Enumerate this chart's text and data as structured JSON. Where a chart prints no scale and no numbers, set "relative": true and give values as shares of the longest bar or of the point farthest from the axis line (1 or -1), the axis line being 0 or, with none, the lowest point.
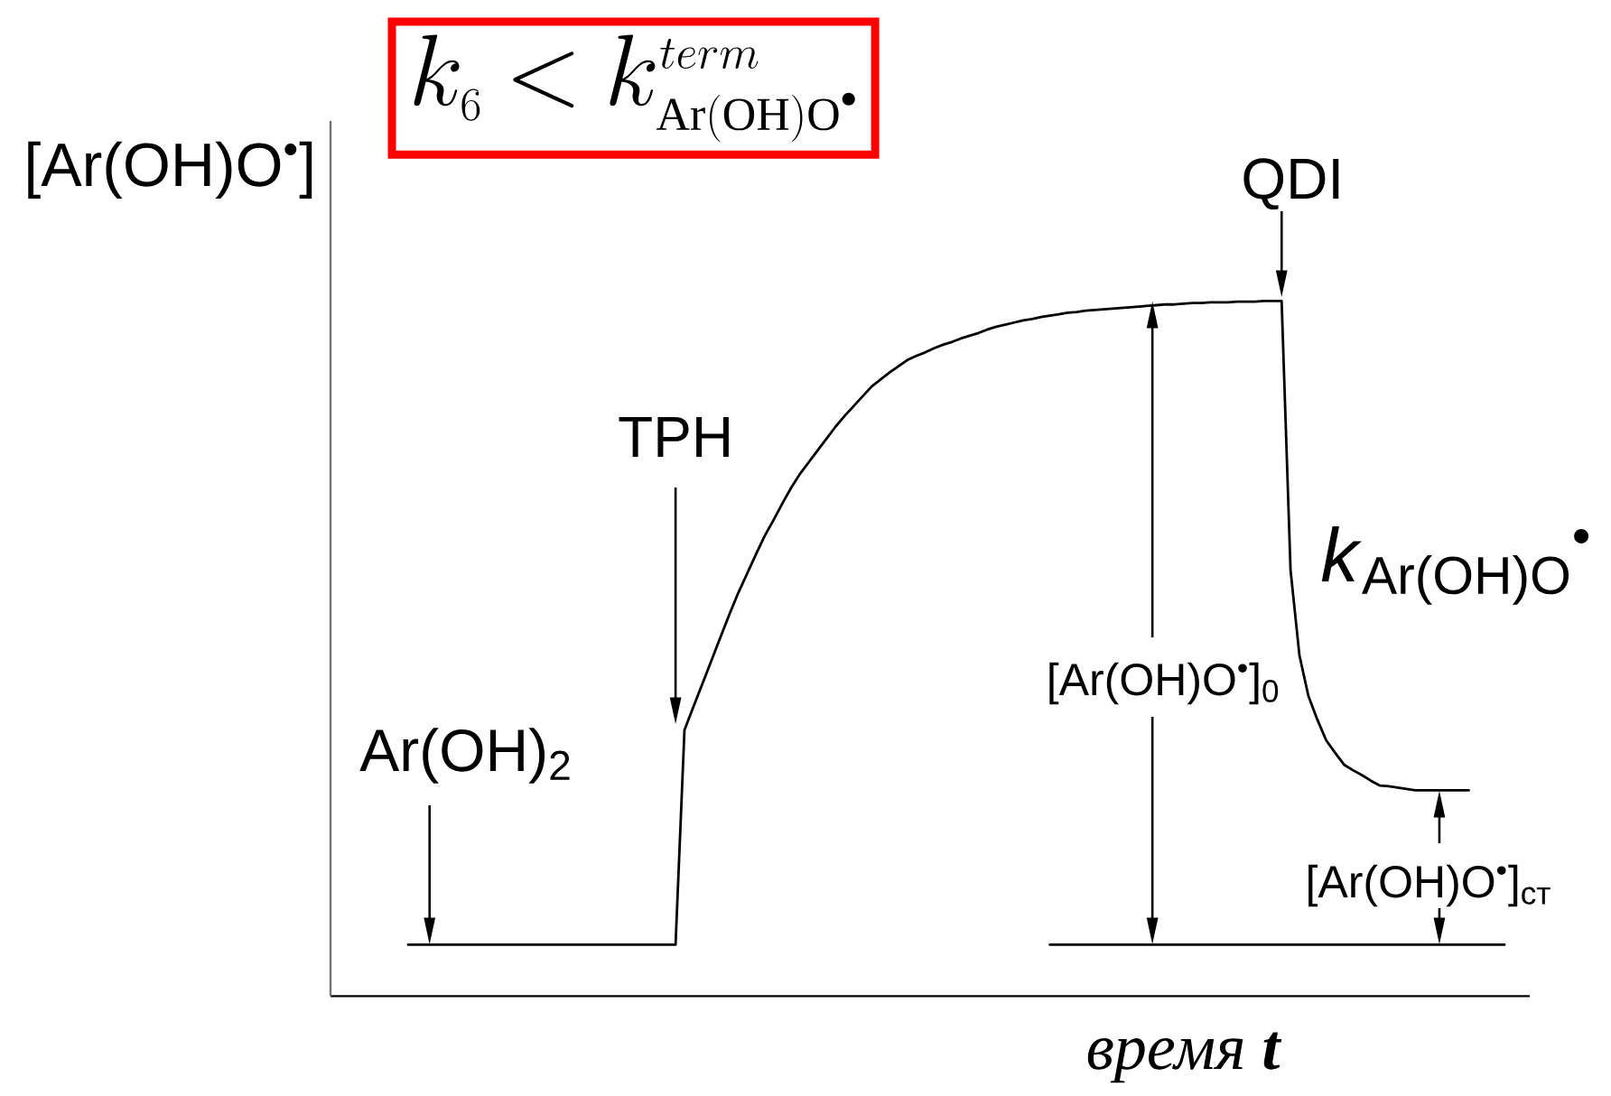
{
  "chart_data": {
    "type": "line",
    "relative": true,
    "title": "k_{6} < k^{term}_{\\mathrm{Ar(OH)O}^{\\bullet}}",
    "xlabel": "время **t**",
    "ylabel": "[Ar(OH)O$^{•}$]",
    "categories": [
      null,
      null,
      null,
      null,
      null,
      null,
      null,
      null,
      null,
      null,
      null,
      null,
      null,
      null,
      null,
      null,
      null,
      null,
      null,
      null,
      null,
      null,
      null,
      null,
      null,
      null,
      null,
      null,
      null,
      null,
      null,
      null,
      null,
      null,
      null,
      null,
      null,
      null,
      null,
      null,
      null,
      null,
      null,
      null,
      null,
      null,
      null,
      null,
      null,
      null,
      null,
      null,
      null,
      null,
      null,
      null,
      null,
      null,
      null,
      null,
      null,
      null,
      null,
      null,
      null,
      null,
      null,
      null,
      null,
      null,
      null,
      null,
      null,
      null,
      null,
      null,
      null,
      null,
      null,
      null,
      null,
      null,
      null,
      null,
      null,
      null,
      null,
      null,
      null,
      null,
      null,
      null,
      null,
      null,
      null,
      null,
      null,
      null,
      null,
      null,
      null,
      null,
      null,
      null,
      null,
      null,
      null,
      null,
      null,
      null,
      null,
      null,
      null,
      null,
      null,
      null,
      null,
      null,
      null,
      null,
      null,
      null,
      null,
      null
    ],
    "series": [
      {
        "color": "#000000",
        "values": [
          0.074,
          0.074,
          0.074,
          0.074,
          0.074,
          0.074,
          0.074,
          0.074,
          0.074,
          0.074,
          0.074,
          0.074,
          0.074,
          0.074,
          0.074,
          0.074,
          0.074,
          0.074,
          0.074,
          0.074,
          0.074,
          0.074,
          0.074,
          0.074,
          0.074,
          0.074,
          0.074,
          0.074,
          0.074,
          0.074,
          0.074,
          0.383,
          0.416,
          0.449,
          0.482,
          0.515,
          0.548,
          0.579,
          0.607,
          0.635,
          0.662,
          0.685,
          0.709,
          0.732,
          0.752,
          0.769,
          0.786,
          0.803,
          0.82,
          0.835,
          0.849,
          0.863,
          0.877,
          0.887,
          0.897,
          0.906,
          0.915,
          0.921,
          0.926,
          0.932,
          0.937,
          0.941,
          0.946,
          0.95,
          0.954,
          0.959,
          0.963,
          0.966,
          0.969,
          0.972,
          0.974,
          0.977,
          0.979,
          0.981,
          0.983,
          0.984,
          0.986,
          0.987,
          0.988,
          0.989,
          0.99,
          0.991,
          0.992,
          0.993,
          0.994,
          0.995,
          0.995,
          0.996,
          0.997,
          0.997,
          0.998,
          0.998,
          0.998,
          0.999,
          0.999,
          0.999,
          1,
          1,
          1,
          0.613,
          0.49,
          0.432,
          0.398,
          0.368,
          0.35,
          0.333,
          0.325,
          0.318,
          0.31,
          0.303,
          0.302,
          0.3,
          0.298,
          0.296,
          0.296,
          0.296,
          0.296,
          0.296,
          0.296,
          0.296,
          null,
          null,
          null,
          null
        ]
      },
      {
        "color": "#000000",
        "values": [
          null,
          null,
          null,
          null,
          null,
          null,
          null,
          null,
          null,
          null,
          null,
          null,
          null,
          null,
          null,
          null,
          null,
          null,
          null,
          null,
          null,
          null,
          null,
          null,
          null,
          null,
          null,
          null,
          null,
          null,
          null,
          null,
          null,
          null,
          null,
          null,
          null,
          null,
          null,
          null,
          null,
          null,
          null,
          null,
          null,
          null,
          null,
          null,
          null,
          null,
          null,
          null,
          null,
          null,
          null,
          null,
          null,
          null,
          null,
          null,
          null,
          null,
          null,
          null,
          null,
          null,
          null,
          null,
          null,
          null,
          null,
          null,
          0.074,
          0.074,
          0.074,
          0.074,
          0.074,
          0.074,
          0.074,
          0.074,
          0.074,
          0.074,
          0.074,
          0.074,
          0.074,
          0.074,
          0.074,
          0.074,
          0.074,
          0.074,
          0.074,
          0.074,
          0.074,
          0.074,
          0.074,
          0.074,
          0.074,
          0.074,
          0.074,
          0.074,
          0.074,
          0.074,
          0.074,
          0.074,
          0.074,
          0.074,
          0.074,
          0.074,
          0.074,
          0.074,
          0.074,
          0.074,
          0.074,
          0.074,
          0.074,
          0.074,
          0.074,
          0.074,
          0.074,
          0.074,
          0.074,
          0.074,
          0.074,
          0.074
        ]
      }
    ],
    "annotations": [
      "Ar(OH)$_{2}$",
      "TPH",
      "QDI",
      "[Ar(OH)O$^{•}$]$_{0}$",
      "[Ar(OH)O$^{•}$]$_{ст}$",
      "*k*$_{Ar(OH)O}$$^{•}$"
    ]
  }
}
